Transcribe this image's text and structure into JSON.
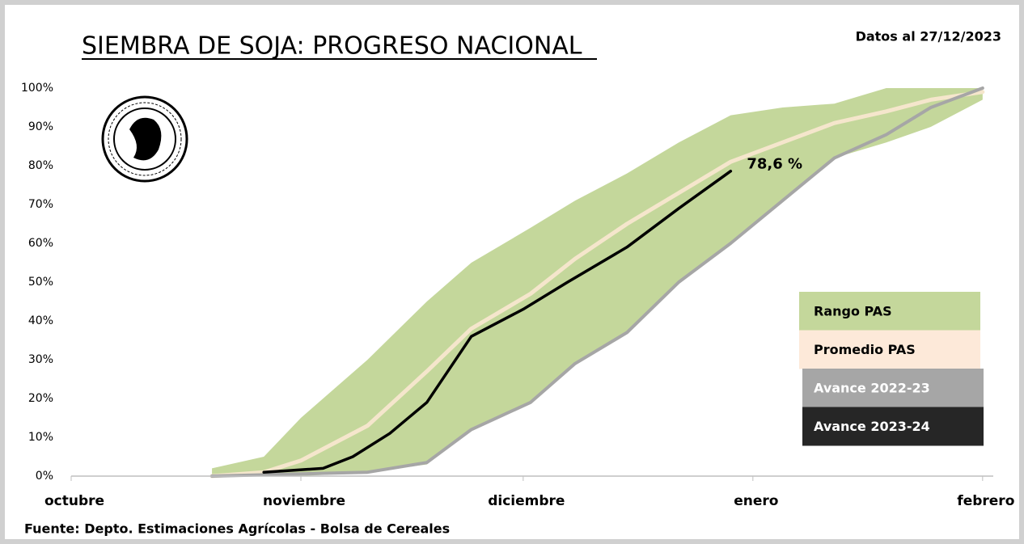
{
  "chart_data": {
    "type": "line",
    "title": "SIEMBRA DE SOJA: PROGRESO NACIONAL",
    "subtitle": "Datos al 27/12/2023",
    "source": "Fuente: Depto. Estimaciones Agrícolas - Bolsa de Cereales",
    "annotation": "78,6 %",
    "xlim": [
      0,
      124
    ],
    "xticks": [
      {
        "value": 0,
        "label": "octubre"
      },
      {
        "value": 31,
        "label": "noviembre"
      },
      {
        "value": 61,
        "label": "diciembre"
      },
      {
        "value": 92,
        "label": "enero"
      },
      {
        "value": 123,
        "label": "febrero"
      }
    ],
    "ylim": [
      0,
      100
    ],
    "yticks": [
      {
        "value": 0,
        "label": "0%"
      },
      {
        "value": 10,
        "label": "10%"
      },
      {
        "value": 20,
        "label": "20%"
      },
      {
        "value": 30,
        "label": "30%"
      },
      {
        "value": 40,
        "label": "40%"
      },
      {
        "value": 50,
        "label": "50%"
      },
      {
        "value": 60,
        "label": "60%"
      },
      {
        "value": 70,
        "label": "70%"
      },
      {
        "value": 80,
        "label": "80%"
      },
      {
        "value": 90,
        "label": "90%"
      },
      {
        "value": 100,
        "label": "100%"
      }
    ],
    "series": [
      {
        "name": "Rango PAS",
        "color": "#c4d79b",
        "x": [
          19,
          26,
          31,
          40,
          48,
          54,
          62,
          68,
          75,
          82,
          89,
          96,
          103,
          110,
          116,
          123
        ],
        "high": [
          2,
          5,
          15,
          30,
          45,
          55,
          64,
          71,
          78,
          86,
          93,
          95,
          96,
          100,
          100,
          100
        ],
        "low": [
          0,
          0,
          0,
          1,
          3,
          12,
          19,
          29,
          37,
          50,
          60,
          71,
          82,
          86,
          90,
          97
        ]
      },
      {
        "name": "Promedio PAS",
        "color": "#fde9d9",
        "x": [
          19,
          26,
          31,
          40,
          48,
          54,
          62,
          68,
          75,
          82,
          89,
          96,
          103,
          110,
          116,
          123
        ],
        "values": [
          0,
          1,
          4,
          13,
          27,
          38,
          47,
          56,
          65,
          73,
          81,
          86,
          91,
          94,
          97,
          99
        ]
      },
      {
        "name": "Avance 2022-23",
        "color": "#a6a6a6",
        "x": [
          19,
          40,
          48,
          54,
          62,
          68,
          75,
          82,
          89,
          96,
          103,
          110,
          116,
          123
        ],
        "values": [
          0,
          1,
          3.5,
          12,
          19,
          29,
          37,
          50,
          60,
          71,
          82,
          88,
          95,
          100
        ]
      },
      {
        "name": "Avance 2023-24",
        "color": "#000000",
        "x": [
          26,
          34,
          38,
          43,
          48,
          54,
          61,
          67,
          75,
          82,
          89
        ],
        "values": [
          1,
          2,
          5,
          11,
          19,
          36,
          43,
          50,
          59,
          69,
          78.6
        ]
      }
    ]
  }
}
